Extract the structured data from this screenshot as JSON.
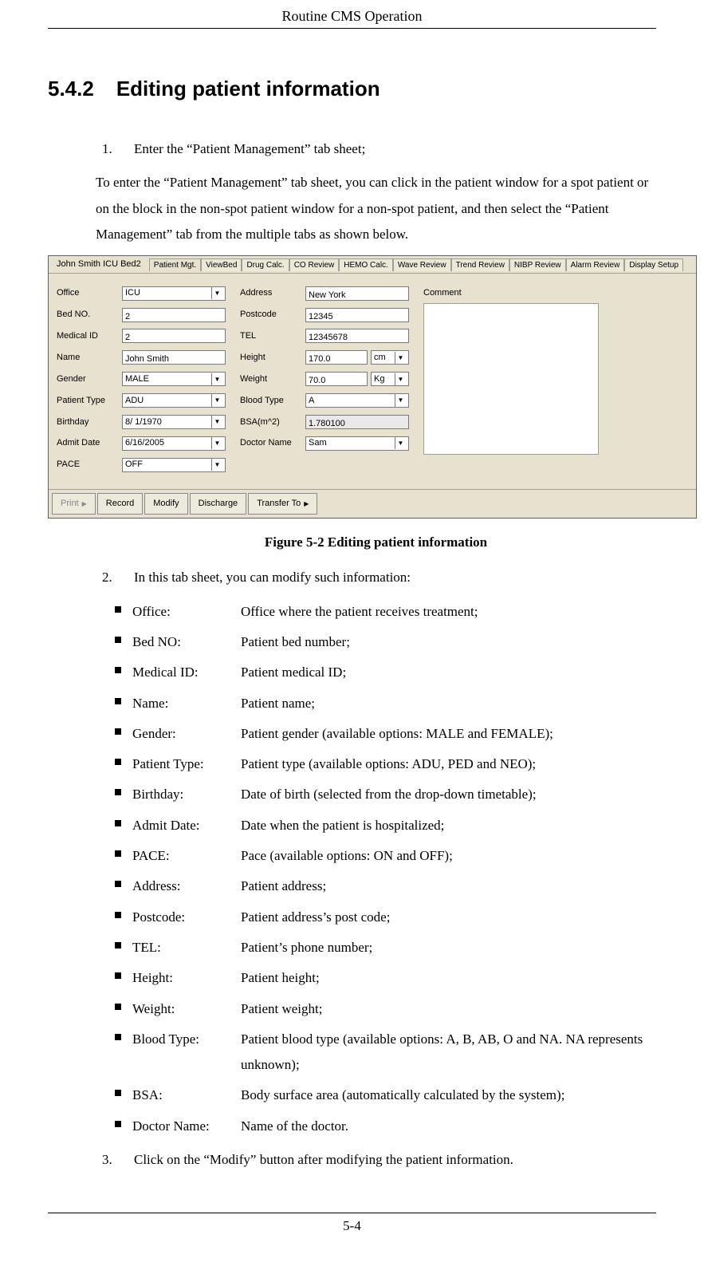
{
  "header": {
    "title": "Routine CMS Operation"
  },
  "section": {
    "number": "5.4.2",
    "title": "Editing patient information"
  },
  "steps": {
    "s1_num": "1.",
    "s1_text": "Enter the “Patient Management” tab sheet;",
    "intro": "To enter the “Patient Management” tab sheet, you can click in the patient window for a spot patient or on the block in the non-spot patient window for a non-spot patient, and then select the “Patient Management”  tab from the multiple tabs as shown below.",
    "s2_num": "2.",
    "s2_text": "In this tab sheet, you can modify such information:",
    "s3_num": "3.",
    "s3_text": "Click on the “Modify” button after modifying the patient information."
  },
  "ui": {
    "title": "John Smith ICU Bed2",
    "tabs": [
      "Patient Mgt.",
      "ViewBed",
      "Drug Calc.",
      "CO Review",
      "HEMO Calc.",
      "Wave Review",
      "Trend Review",
      "NIBP Review",
      "Alarm Review",
      "Display Setup"
    ],
    "active_tab_index": 0,
    "colors": {
      "window_bg": "#e6e2cf",
      "border": "#606060",
      "input_bg": "#ffffff",
      "readonly_bg": "#e9e9e9",
      "button_bg": "#eceadb"
    },
    "left_fields": [
      {
        "label": "Office",
        "value": "ICU",
        "type": "combo"
      },
      {
        "label": "Bed NO.",
        "value": "2",
        "type": "text"
      },
      {
        "label": "Medical ID",
        "value": "2",
        "type": "text"
      },
      {
        "label": "Name",
        "value": "John Smith",
        "type": "text"
      },
      {
        "label": "Gender",
        "value": "MALE",
        "type": "combo"
      },
      {
        "label": "Patient Type",
        "value": "ADU",
        "type": "combo"
      },
      {
        "label": "Birthday",
        "value": " 8/ 1/1970",
        "type": "combo"
      },
      {
        "label": "Admit Date",
        "value": " 6/16/2005",
        "type": "combo"
      },
      {
        "label": "PACE",
        "value": "OFF",
        "type": "combo"
      }
    ],
    "right_fields": [
      {
        "label": "Address",
        "value": "New York",
        "type": "text"
      },
      {
        "label": "Postcode",
        "value": "12345",
        "type": "text"
      },
      {
        "label": "TEL",
        "value": "12345678",
        "type": "text"
      },
      {
        "label": "Height",
        "value": "170.0",
        "unit": "cm",
        "type": "unit"
      },
      {
        "label": "Weight",
        "value": "70.0",
        "unit": "Kg",
        "type": "unit"
      },
      {
        "label": "Blood Type",
        "value": "A",
        "type": "combo"
      },
      {
        "label": "BSA(m^2)",
        "value": "1.780100",
        "type": "readonly"
      },
      {
        "label": "Doctor Name",
        "value": "Sam",
        "type": "combo"
      }
    ],
    "comment_label": "Comment",
    "buttons": {
      "print": "Print",
      "record": "Record",
      "modify": "Modify",
      "discharge": "Discharge",
      "transfer": "Transfer To"
    }
  },
  "figure_caption": "Figure 5-2 Editing patient information",
  "defs": [
    {
      "term": "Office:",
      "desc": "Office where the patient receives treatment;"
    },
    {
      "term": "Bed NO:",
      "desc": "Patient bed number;"
    },
    {
      "term": "Medical ID:",
      "desc": "Patient medical ID;"
    },
    {
      "term": "Name:",
      "desc": "Patient name;"
    },
    {
      "term": "Gender:",
      "desc": "Patient gender (available options: MALE and FEMALE);"
    },
    {
      "term": "Patient Type:",
      "desc": "Patient type (available options: ADU, PED and NEO);"
    },
    {
      "term": "Birthday:",
      "desc": "Date of birth (selected from the drop-down timetable);"
    },
    {
      "term": "Admit Date:",
      "desc": "Date when the patient is hospitalized;"
    },
    {
      "term": "PACE:",
      "desc": "Pace (available options: ON and OFF);"
    },
    {
      "term": "Address:",
      "desc": "Patient address;"
    },
    {
      "term": "Postcode:",
      "desc": "Patient address’s post code;"
    },
    {
      "term": "TEL:",
      "desc": "Patient’s phone number;"
    },
    {
      "term": "Height:",
      "desc": "Patient height;"
    },
    {
      "term": "Weight:",
      "desc": "Patient weight;"
    },
    {
      "term": "Blood Type:",
      "desc": "Patient blood type (available options: A, B, AB, O and NA. NA represents unknown);"
    },
    {
      "term": "BSA:",
      "desc": "Body surface area (automatically calculated by the system);"
    },
    {
      "term": "Doctor Name:",
      "desc": "Name of the doctor."
    }
  ],
  "footer": {
    "page": "5-4"
  }
}
